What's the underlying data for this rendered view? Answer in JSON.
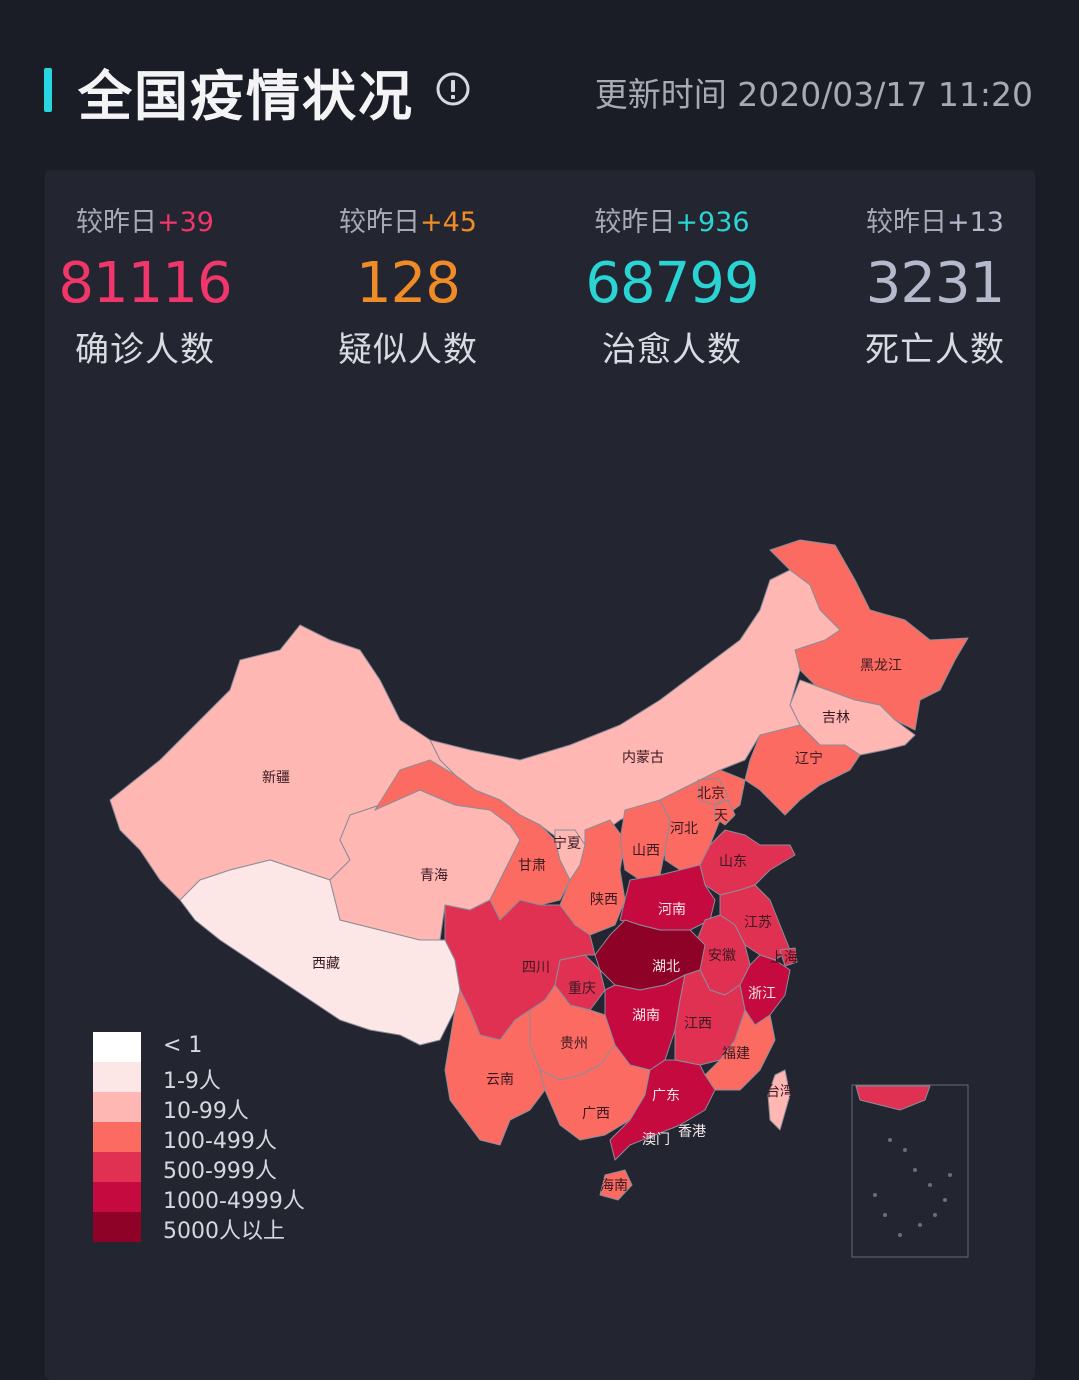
{
  "header": {
    "title": "全国疫情状况",
    "update_label": "更新时间 2020/03/17 11:20"
  },
  "stats": [
    {
      "delta_prefix": "较昨日",
      "delta": "+39",
      "value": "81116",
      "label": "确诊人数",
      "color": "#f0366b"
    },
    {
      "delta_prefix": "较昨日",
      "delta": "+45",
      "value": "128",
      "label": "疑似人数",
      "color": "#f08c28"
    },
    {
      "delta_prefix": "较昨日",
      "delta": "+936",
      "value": "68799",
      "label": "治愈人数",
      "color": "#2ad4d3"
    },
    {
      "delta_prefix": "较昨日",
      "delta": "+13",
      "value": "3231",
      "label": "死亡人数",
      "color": "#b4b9cc"
    }
  ],
  "legend": [
    {
      "label": "< 1",
      "color": "#ffffff"
    },
    {
      "label": "1-9人",
      "color": "#fde6e6"
    },
    {
      "label": "10-99人",
      "color": "#feb7b3"
    },
    {
      "label": "100-499人",
      "color": "#fb6b62"
    },
    {
      "label": "500-999人",
      "color": "#e03152"
    },
    {
      "label": "1000-4999人",
      "color": "#c40a3e"
    },
    {
      "label": "5000人以上",
      "color": "#8f0227"
    }
  ],
  "provinces": {
    "xinjiang": "新疆",
    "xizang": "西藏",
    "qinghai": "青海",
    "gansu": "甘肃",
    "neimenggu": "内蒙古",
    "heilongjiang": "黑龙江",
    "jilin": "吉林",
    "liaoning": "辽宁",
    "beijing": "北京",
    "tianjin": "天",
    "hebei": "河北",
    "shanxi": "山西",
    "shandong": "山东",
    "ningxia": "宁夏",
    "shaanxi": "陕西",
    "henan": "河南",
    "jiangsu": "江苏",
    "shanghai": "上海",
    "anhui": "安徽",
    "hubei": "湖北",
    "sichuan": "四川",
    "chongqing": "重庆",
    "zhejiang": "浙江",
    "hunan": "湖南",
    "jiangxi": "江西",
    "guizhou": "贵州",
    "fujian": "福建",
    "yunnan": "云南",
    "guangxi": "广西",
    "guangdong": "广东",
    "taiwan": "台湾",
    "aomen": "澳门",
    "xianggang": "香港",
    "hainan": "海南"
  }
}
